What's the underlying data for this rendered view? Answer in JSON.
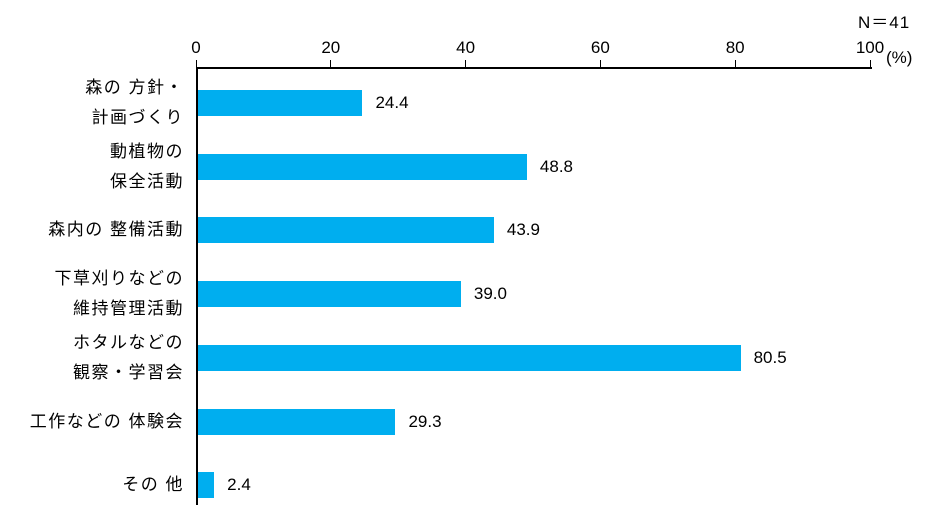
{
  "chart_data": {
    "type": "bar",
    "orientation": "horizontal",
    "title": "",
    "n_label": "N＝41",
    "unit_label": "(%)",
    "categories": [
      [
        "森の 方針・",
        "計画づくり"
      ],
      [
        "動植物の",
        "保全活動"
      ],
      [
        "森内の 整備活動"
      ],
      [
        "下草刈りなどの",
        "維持管理活動"
      ],
      [
        "ホタルなどの",
        "観察・学習会"
      ],
      [
        "工作などの 体験会"
      ],
      [
        "その 他"
      ]
    ],
    "values": [
      24.4,
      48.8,
      43.9,
      39.0,
      80.5,
      29.3,
      2.4
    ],
    "value_labels": [
      "24.4",
      "48.8",
      "43.9",
      "39.0",
      "80.5",
      "29.3",
      "2.4"
    ],
    "xlim": [
      0,
      100
    ],
    "xticks": [
      "0",
      "20",
      "40",
      "60",
      "80",
      "100"
    ],
    "bar_color": "#00AEEF",
    "axis_color": "#000000",
    "grid": false,
    "legend": "none"
  }
}
